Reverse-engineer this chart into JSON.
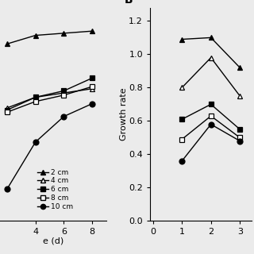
{
  "panel_A": {
    "x": [
      2,
      4,
      6,
      8
    ],
    "series": {
      "2cm": {
        "y": [
          1.18,
          1.22,
          1.23,
          1.24
        ],
        "marker": "^",
        "filled": true,
        "label": "2 cm"
      },
      "4cm": {
        "y": [
          0.88,
          0.93,
          0.95,
          0.97
        ],
        "marker": "^",
        "filled": false,
        "label": "4 cm"
      },
      "6cm": {
        "y": [
          0.87,
          0.93,
          0.96,
          1.02
        ],
        "marker": "s",
        "filled": true,
        "label": "6 cm"
      },
      "8cm": {
        "y": [
          0.86,
          0.91,
          0.94,
          0.98
        ],
        "marker": "s",
        "filled": false,
        "label": "8 cm"
      },
      "10cm": {
        "y": [
          0.5,
          0.72,
          0.84,
          0.9
        ],
        "marker": "o",
        "filled": true,
        "label": "10 cm"
      }
    },
    "xlabel": "e (d)",
    "xlim": [
      1.5,
      9.0
    ],
    "xticks": [
      4,
      6,
      8
    ],
    "ylim": [
      0.35,
      1.35
    ],
    "show_left_spine": false
  },
  "panel_B": {
    "x": [
      1,
      2,
      3
    ],
    "series": {
      "2cm": {
        "y": [
          1.09,
          1.1,
          0.92
        ],
        "marker": "^",
        "filled": true,
        "label": "2 cm"
      },
      "4cm": {
        "y": [
          0.8,
          0.98,
          0.75
        ],
        "marker": "^",
        "filled": false,
        "label": "4 cm"
      },
      "6cm": {
        "y": [
          0.61,
          0.7,
          0.55
        ],
        "marker": "s",
        "filled": true,
        "label": "6 cm"
      },
      "8cm": {
        "y": [
          0.49,
          0.63,
          0.5
        ],
        "marker": "s",
        "filled": false,
        "label": "8 cm"
      },
      "10cm": {
        "y": [
          0.36,
          0.58,
          0.48
        ],
        "marker": "o",
        "filled": true,
        "label": "10 cm"
      }
    },
    "ylabel": "Growth rate",
    "xlim": [
      -0.1,
      3.4
    ],
    "xticks": [
      0,
      1,
      2,
      3
    ],
    "ylim": [
      0.0,
      1.28
    ],
    "yticks": [
      0.0,
      0.2,
      0.4,
      0.6,
      0.8,
      1.0,
      1.2
    ]
  },
  "background_color": "#ebebeb",
  "marker_order": [
    "2cm",
    "4cm",
    "6cm",
    "8cm",
    "10cm"
  ]
}
